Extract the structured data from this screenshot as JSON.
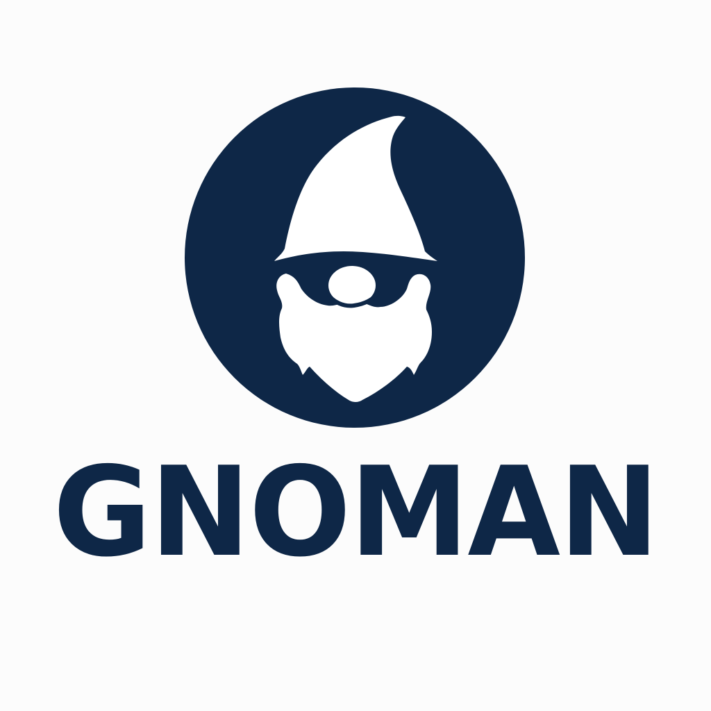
{
  "brand": {
    "name": "GNOMAN",
    "colors": {
      "primary": "#0e2747",
      "background": "#fcfcfc",
      "foreground": "#ffffff"
    }
  },
  "logo": {
    "icon": "gnome-icon"
  }
}
